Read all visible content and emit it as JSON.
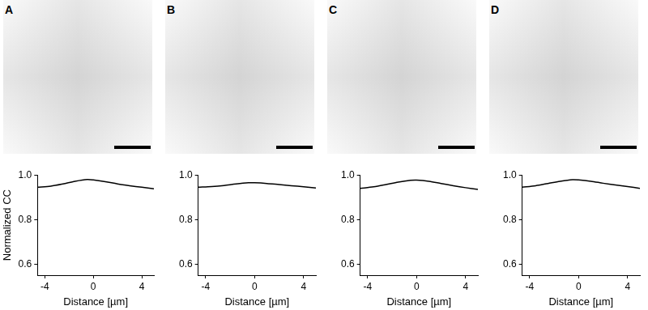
{
  "chart_data": [
    {
      "type": "line",
      "panel_label": "A",
      "y_label": "Normalized CC",
      "x_label": "Distance [µm]",
      "x": [
        -4.6,
        -3.5,
        -2.5,
        -1.5,
        -0.5,
        0,
        1,
        2,
        3,
        4,
        5.0
      ],
      "values": [
        0.945,
        0.95,
        0.96,
        0.972,
        0.98,
        0.978,
        0.97,
        0.96,
        0.952,
        0.945,
        0.938
      ],
      "color": "#000000",
      "xlim": [
        -4.6,
        5.0
      ],
      "xticks": [
        -4,
        0,
        4
      ],
      "ylim": [
        0.55,
        1.0
      ],
      "yticks": [
        0.6,
        0.8,
        {
          "value": 1.0,
          "label": "1.0"
        }
      ],
      "grid": false
    },
    {
      "type": "line",
      "panel_label": "B",
      "x_label": "Distance [µm]",
      "x": [
        -4.6,
        -3.5,
        -2.5,
        -1.5,
        -0.5,
        0,
        1,
        2,
        3,
        4,
        5.0
      ],
      "values": [
        0.945,
        0.948,
        0.953,
        0.96,
        0.965,
        0.965,
        0.962,
        0.957,
        0.952,
        0.947,
        0.942
      ],
      "color": "#000000",
      "xlim": [
        -4.6,
        5.0
      ],
      "xticks": [
        -4,
        0,
        4
      ],
      "ylim": [
        0.55,
        1.0
      ],
      "yticks": [
        0.6,
        0.8,
        {
          "value": 1.0,
          "label": "1.0"
        }
      ],
      "grid": false
    },
    {
      "type": "line",
      "panel_label": "C",
      "x_label": "Distance [µm]",
      "x": [
        -4.6,
        -3.5,
        -2.5,
        -1.5,
        -0.5,
        0,
        1,
        2,
        3,
        4,
        5.0
      ],
      "values": [
        0.94,
        0.947,
        0.957,
        0.968,
        0.976,
        0.977,
        0.972,
        0.962,
        0.952,
        0.943,
        0.935
      ],
      "color": "#000000",
      "xlim": [
        -4.6,
        5.0
      ],
      "xticks": [
        -4,
        0,
        4
      ],
      "ylim": [
        0.55,
        1.0
      ],
      "yticks": [
        0.6,
        0.8,
        {
          "value": 1.0,
          "label": "1.0"
        }
      ],
      "grid": false
    },
    {
      "type": "line",
      "panel_label": "D",
      "x_label": "Distance [µm]",
      "x": [
        -4.6,
        -3.5,
        -2.5,
        -1.5,
        -0.5,
        0,
        1,
        2,
        3,
        4,
        5.0
      ],
      "values": [
        0.945,
        0.952,
        0.962,
        0.972,
        0.979,
        0.978,
        0.972,
        0.963,
        0.955,
        0.948,
        0.94
      ],
      "color": "#000000",
      "xlim": [
        -4.6,
        5.0
      ],
      "xticks": [
        -4,
        0,
        4
      ],
      "ylim": [
        0.55,
        1.0
      ],
      "yticks": [
        0.6,
        0.8,
        {
          "value": 1.0,
          "label": "1.0"
        }
      ],
      "grid": false
    }
  ]
}
